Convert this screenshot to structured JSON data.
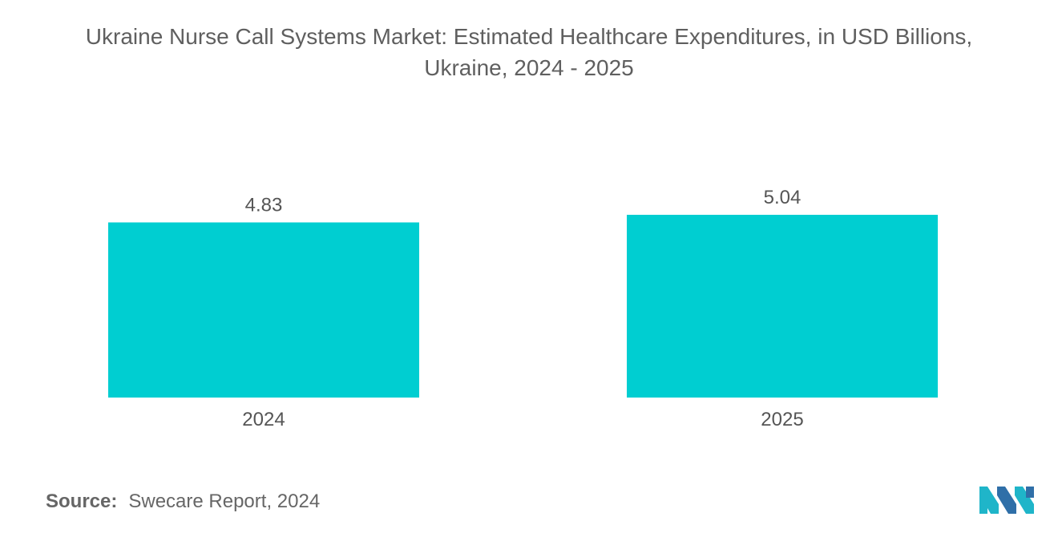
{
  "chart_data": {
    "type": "bar",
    "title": "Ukraine Nurse Call Systems Market: Estimated Healthcare Expenditures, in USD Billions,",
    "subtitle": "Ukraine, 2024 - 2025",
    "categories": [
      "2024",
      "2025"
    ],
    "values": [
      4.83,
      5.04
    ],
    "value_labels": [
      "4.83",
      "5.04"
    ],
    "xlabel": "",
    "ylabel": "",
    "ylim": [
      0,
      5.04
    ],
    "grid": false,
    "legend": "none",
    "bar_color": "#00CED1"
  },
  "source": {
    "label": "Source:",
    "text": "Swecare Report, 2024"
  },
  "logo": {
    "icon": "mordor-intelligence-logo-icon",
    "colors": [
      "#1FB5C9",
      "#2F6FA8"
    ]
  }
}
